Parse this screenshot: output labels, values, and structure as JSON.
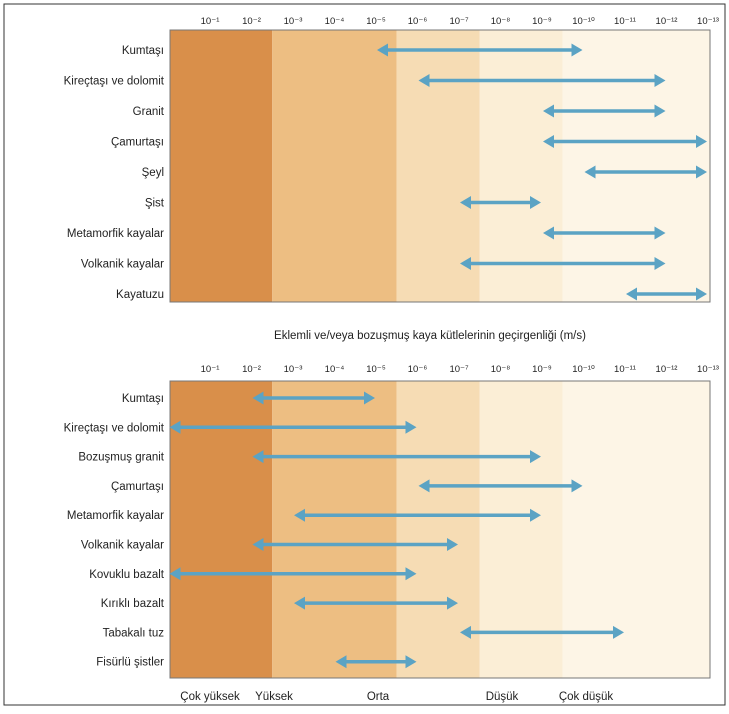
{
  "chart_data": [
    {
      "type": "range",
      "x_scale": "log-reversed",
      "tick_labels": [
        "10⁻¹",
        "10⁻²",
        "10⁻³",
        "10⁻⁴",
        "10⁻⁵",
        "10⁻⁶",
        "10⁻⁷",
        "10⁻⁸",
        "10⁻⁹",
        "10⁻¹⁰",
        "10⁻¹¹",
        "10⁻¹²",
        "10⁻¹³"
      ],
      "categories": [
        "Kumtaşı",
        "Kireçtaşı ve dolomit",
        "Granit",
        "Çamurtaşı",
        "Şeyl",
        "Şist",
        "Metamorfik kayalar",
        "Volkanik kayalar",
        "Kayatuzu"
      ],
      "ranges": [
        [
          -5,
          -10
        ],
        [
          -6,
          -12
        ],
        [
          -9,
          -12
        ],
        [
          -9,
          -13
        ],
        [
          -10,
          -13
        ],
        [
          -7,
          -9
        ],
        [
          -9,
          -12
        ],
        [
          -7,
          -12
        ],
        [
          -11,
          -13
        ]
      ],
      "caption": "Eklemli ve/veya bozuşmuş kaya kütlelerinin geçirgenliği (m/s)"
    },
    {
      "type": "range",
      "x_scale": "log-reversed",
      "tick_labels": [
        "10⁻¹",
        "10⁻²",
        "10⁻³",
        "10⁻⁴",
        "10⁻⁵",
        "10⁻⁶",
        "10⁻⁷",
        "10⁻⁸",
        "10⁻⁹",
        "10⁻¹⁰",
        "10⁻¹¹",
        "10⁻¹²",
        "10⁻¹³"
      ],
      "categories": [
        "Kumtaşı",
        "Kireçtaşı ve dolomit",
        "Bozuşmuş granit",
        "Çamurtaşı",
        "Metamorfik kayalar",
        "Volkanik kayalar",
        "Kovuklu bazalt",
        "Kırıklı bazalt",
        "Tabakalı tuz",
        "Fisürlü şistler"
      ],
      "ranges": [
        [
          -2,
          -5
        ],
        [
          0,
          -6
        ],
        [
          -2,
          -9
        ],
        [
          -6,
          -10
        ],
        [
          -3,
          -9
        ],
        [
          -2,
          -7
        ],
        [
          0,
          -6
        ],
        [
          -3,
          -7
        ],
        [
          -7,
          -11
        ],
        [
          -4,
          -6
        ]
      ],
      "level_labels": [
        "Çok yüksek",
        "Yüksek",
        "Orta",
        "Düşük",
        "Çok düşük"
      ]
    }
  ],
  "colors": {
    "arrow": "#5ba3c4",
    "band_very_high": "#d98f4a",
    "band_high": "#edbe82",
    "band_medium": "#f6dcb4",
    "band_low": "#fbeed6",
    "band_very_low": "#fdf5e6"
  }
}
